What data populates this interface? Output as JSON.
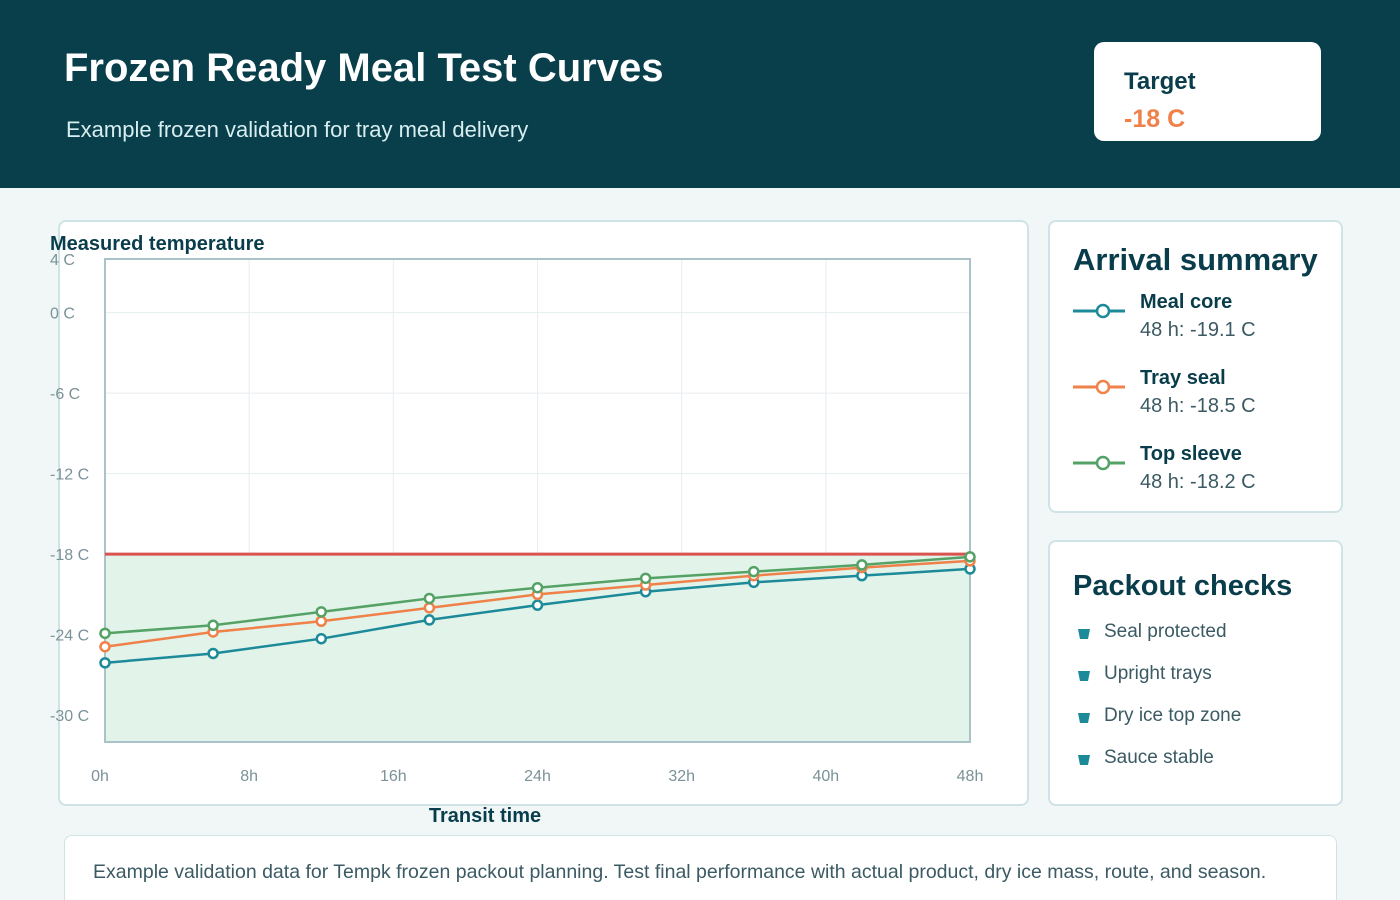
{
  "header": {
    "title": "Frozen Ready Meal Test Curves",
    "subtitle": "Example frozen validation for tray meal delivery",
    "target_label": "Target",
    "target_value": "-18 C"
  },
  "colors": {
    "header_bg": "#093e4b",
    "accent_target": "#ef8149",
    "threshold_line": "#d9534f",
    "safe_zone_fill": "#e2f3ea",
    "meal_core": "#1c8a99",
    "tray_seal": "#ef8149",
    "top_sleeve": "#55a266",
    "check_icon": "#1c8a99"
  },
  "chart_data": {
    "type": "line",
    "title": "Measured temperature",
    "xlabel": "Transit time",
    "ylabel": "",
    "x_ticks": [
      "0h",
      "8h",
      "16h",
      "24h",
      "32h",
      "40h",
      "48h"
    ],
    "y_ticks": [
      "4 C",
      "0 C",
      "-6 C",
      "-12 C",
      "-18 C",
      "-24 C",
      "-30 C"
    ],
    "xlim": [
      0,
      48
    ],
    "ylim": [
      -32,
      4
    ],
    "grid": true,
    "threshold": -18,
    "x": [
      0,
      6,
      12,
      18,
      24,
      30,
      36,
      42,
      48
    ],
    "series": [
      {
        "name": "Meal core",
        "values": [
          -26.1,
          -25.4,
          -24.3,
          -22.9,
          -21.8,
          -20.8,
          -20.1,
          -19.6,
          -19.1
        ]
      },
      {
        "name": "Tray seal",
        "values": [
          -24.9,
          -23.8,
          -23.0,
          -22.0,
          -21.0,
          -20.3,
          -19.6,
          -19.0,
          -18.5
        ]
      },
      {
        "name": "Top sleeve",
        "values": [
          -23.9,
          -23.3,
          -22.3,
          -21.3,
          -20.5,
          -19.8,
          -19.3,
          -18.8,
          -18.2
        ]
      }
    ]
  },
  "summary": {
    "title": "Arrival summary",
    "items": [
      {
        "name": "Meal core",
        "value": "48 h: -19.1 C"
      },
      {
        "name": "Tray seal",
        "value": "48 h: -18.5 C"
      },
      {
        "name": "Top sleeve",
        "value": "48 h: -18.2 C"
      }
    ]
  },
  "checks": {
    "title": "Packout checks",
    "items": [
      "Seal protected",
      "Upright trays",
      "Dry ice top zone",
      "Sauce stable"
    ]
  },
  "footer": {
    "note": "Example validation data for Tempk frozen packout planning. Test final performance with actual product, dry ice mass, route, and season."
  }
}
